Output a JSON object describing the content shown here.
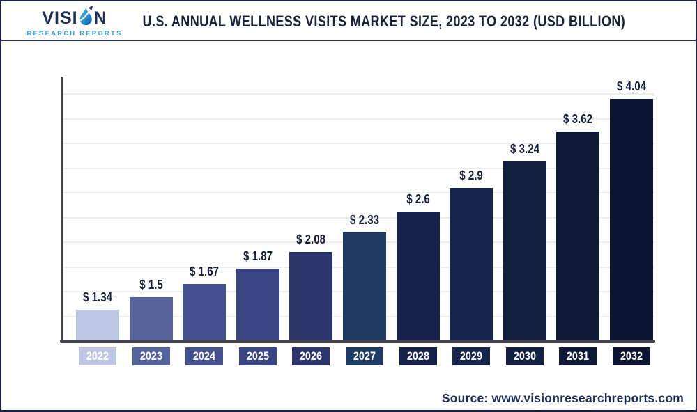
{
  "header": {
    "title": "U.S. ANNUAL WELLNESS VISITS MARKET SIZE, 2023 TO 2032 (USD BILLION)"
  },
  "logo": {
    "word_start": "VISI",
    "word_end": "N",
    "subtitle": "RESEARCH REPORTS",
    "icon": "droplet-arrow-icon",
    "brand_blue": "#2b9fe0",
    "brand_navy": "#1b3056"
  },
  "footer": {
    "source": "Source: www.visionresearchreports.com"
  },
  "chart_data": {
    "type": "bar",
    "title": "U.S. Annual Wellness Visits Market Size, 2023 to 2032 (USD Billion)",
    "unit": "USD Billion",
    "categories": [
      "2022",
      "2023",
      "2024",
      "2025",
      "2026",
      "2027",
      "2028",
      "2029",
      "2030",
      "2031",
      "2032"
    ],
    "values": [
      1.34,
      1.5,
      1.67,
      1.87,
      2.08,
      2.33,
      2.6,
      2.9,
      3.24,
      3.62,
      4.04
    ],
    "value_labels": [
      "$ 1.34",
      "$ 1.5",
      "$ 1.67",
      "$ 1.87",
      "$ 2.08",
      "$ 2.33",
      "$ 2.6",
      "$ 2.9",
      "$ 3.24",
      "$ 3.62",
      "$ 4.04"
    ],
    "bar_colors": [
      "#bdc7e3",
      "#56639b",
      "#45508e",
      "#3a4583",
      "#2b356b",
      "#1f3a63",
      "#15224a",
      "#16254c",
      "#122140",
      "#0e1935",
      "#0b1430"
    ],
    "xlabel": "",
    "ylabel": "",
    "ylim": [
      0.95,
      4.42
    ],
    "grid": true,
    "gridline_count": 10,
    "legend": "none",
    "y_tick_labels_shown": false,
    "label_color": "#161e38",
    "axis_color": "#45454e",
    "gridline_color": "#ececf1"
  }
}
